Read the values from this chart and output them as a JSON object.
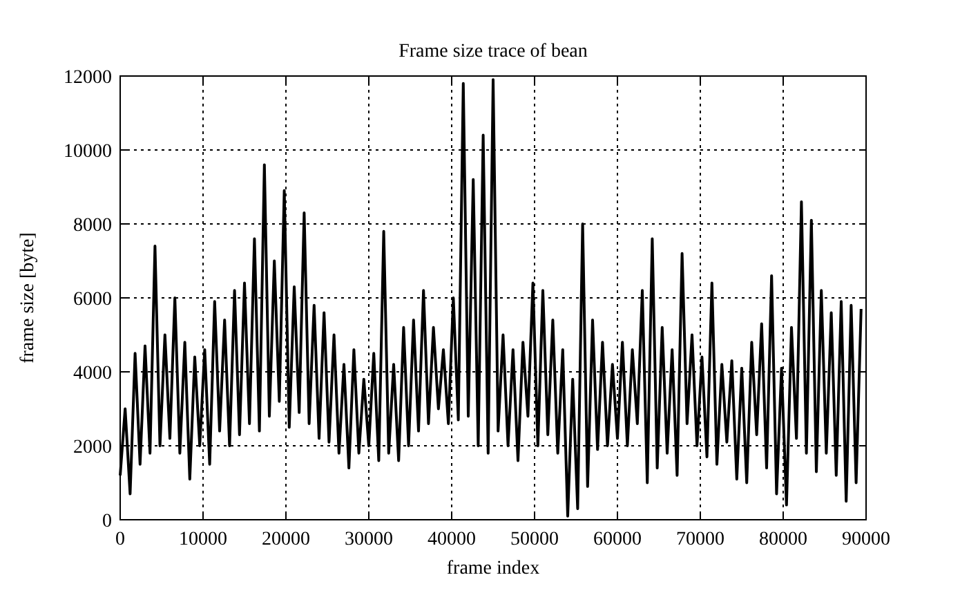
{
  "chart_data": {
    "type": "line",
    "title": "Frame size trace of bean",
    "xlabel": "frame index",
    "ylabel": "frame size [byte]",
    "x": [
      0,
      600,
      1200,
      1800,
      2400,
      3000,
      3600,
      4200,
      4800,
      5400,
      6000,
      6600,
      7200,
      7800,
      8400,
      9000,
      9600,
      10200,
      10800,
      11400,
      12000,
      12600,
      13200,
      13800,
      14400,
      15000,
      15600,
      16200,
      16800,
      17400,
      18000,
      18600,
      19200,
      19800,
      20400,
      21000,
      21600,
      22200,
      22800,
      23400,
      24000,
      24600,
      25200,
      25800,
      26400,
      27000,
      27600,
      28200,
      28800,
      29400,
      30000,
      30600,
      31200,
      31800,
      32400,
      33000,
      33600,
      34200,
      34800,
      35400,
      36000,
      36600,
      37200,
      37800,
      38400,
      39000,
      39600,
      40200,
      40800,
      41400,
      42000,
      42600,
      43200,
      43800,
      44400,
      45000,
      45600,
      46200,
      46800,
      47400,
      48000,
      48600,
      49200,
      49800,
      50400,
      51000,
      51600,
      52200,
      52800,
      53400,
      54000,
      54600,
      55200,
      55800,
      56400,
      57000,
      57600,
      58200,
      58800,
      59400,
      60000,
      60600,
      61200,
      61800,
      62400,
      63000,
      63600,
      64200,
      64800,
      65400,
      66000,
      66600,
      67200,
      67800,
      68400,
      69000,
      69600,
      70200,
      70800,
      71400,
      72000,
      72600,
      73200,
      73800,
      74400,
      75000,
      75600,
      76200,
      76800,
      77400,
      78000,
      78600,
      79200,
      79800,
      80400,
      81000,
      81600,
      82200,
      82800,
      83400,
      84000,
      84600,
      85200,
      85800,
      86400,
      87000,
      87600,
      88200,
      88800,
      89400
    ],
    "series": [
      {
        "color": "#000000",
        "values": [
          1200,
          3000,
          700,
          4500,
          1500,
          4700,
          1800,
          7400,
          2000,
          5000,
          2200,
          6000,
          1800,
          4800,
          1100,
          4400,
          2000,
          4600,
          1500,
          5900,
          2400,
          5400,
          2000,
          6200,
          2300,
          6400,
          2600,
          7600,
          2400,
          9600,
          2800,
          7000,
          3200,
          8900,
          2500,
          6300,
          2900,
          8300,
          2600,
          5800,
          2200,
          5600,
          2100,
          5000,
          1800,
          4200,
          1400,
          4600,
          1800,
          3800,
          2000,
          4500,
          1600,
          7800,
          1800,
          4200,
          1600,
          5200,
          2000,
          5400,
          2400,
          6200,
          2600,
          5200,
          3000,
          4600,
          2600,
          6000,
          2700,
          11800,
          2800,
          9200,
          2000,
          10400,
          1800,
          11900,
          2400,
          5000,
          2000,
          4600,
          1600,
          4800,
          2800,
          6400,
          2000,
          6200,
          2300,
          5400,
          1800,
          4600,
          100,
          3800,
          300,
          8000,
          900,
          5400,
          1900,
          4800,
          2000,
          4200,
          2200,
          4800,
          2000,
          4600,
          2600,
          6200,
          1000,
          7600,
          1400,
          5200,
          1800,
          4600,
          1200,
          7200,
          2600,
          5000,
          2000,
          4400,
          1700,
          6400,
          1500,
          4200,
          2100,
          4300,
          1100,
          4100,
          1000,
          4800,
          2300,
          5300,
          1400,
          6600,
          700,
          4100,
          400,
          5200,
          2200,
          8600,
          1800,
          8100,
          1300,
          6200,
          1800,
          5600,
          1200,
          5900,
          500,
          5800,
          1000,
          5700
        ]
      }
    ],
    "xlim": [
      0,
      90000
    ],
    "xticks": [
      0,
      10000,
      20000,
      30000,
      40000,
      50000,
      60000,
      70000,
      80000,
      90000
    ],
    "ylim": [
      0,
      12000
    ],
    "yticks": [
      0,
      2000,
      4000,
      6000,
      8000,
      10000,
      12000
    ],
    "grid": true,
    "line_style": "solid"
  }
}
